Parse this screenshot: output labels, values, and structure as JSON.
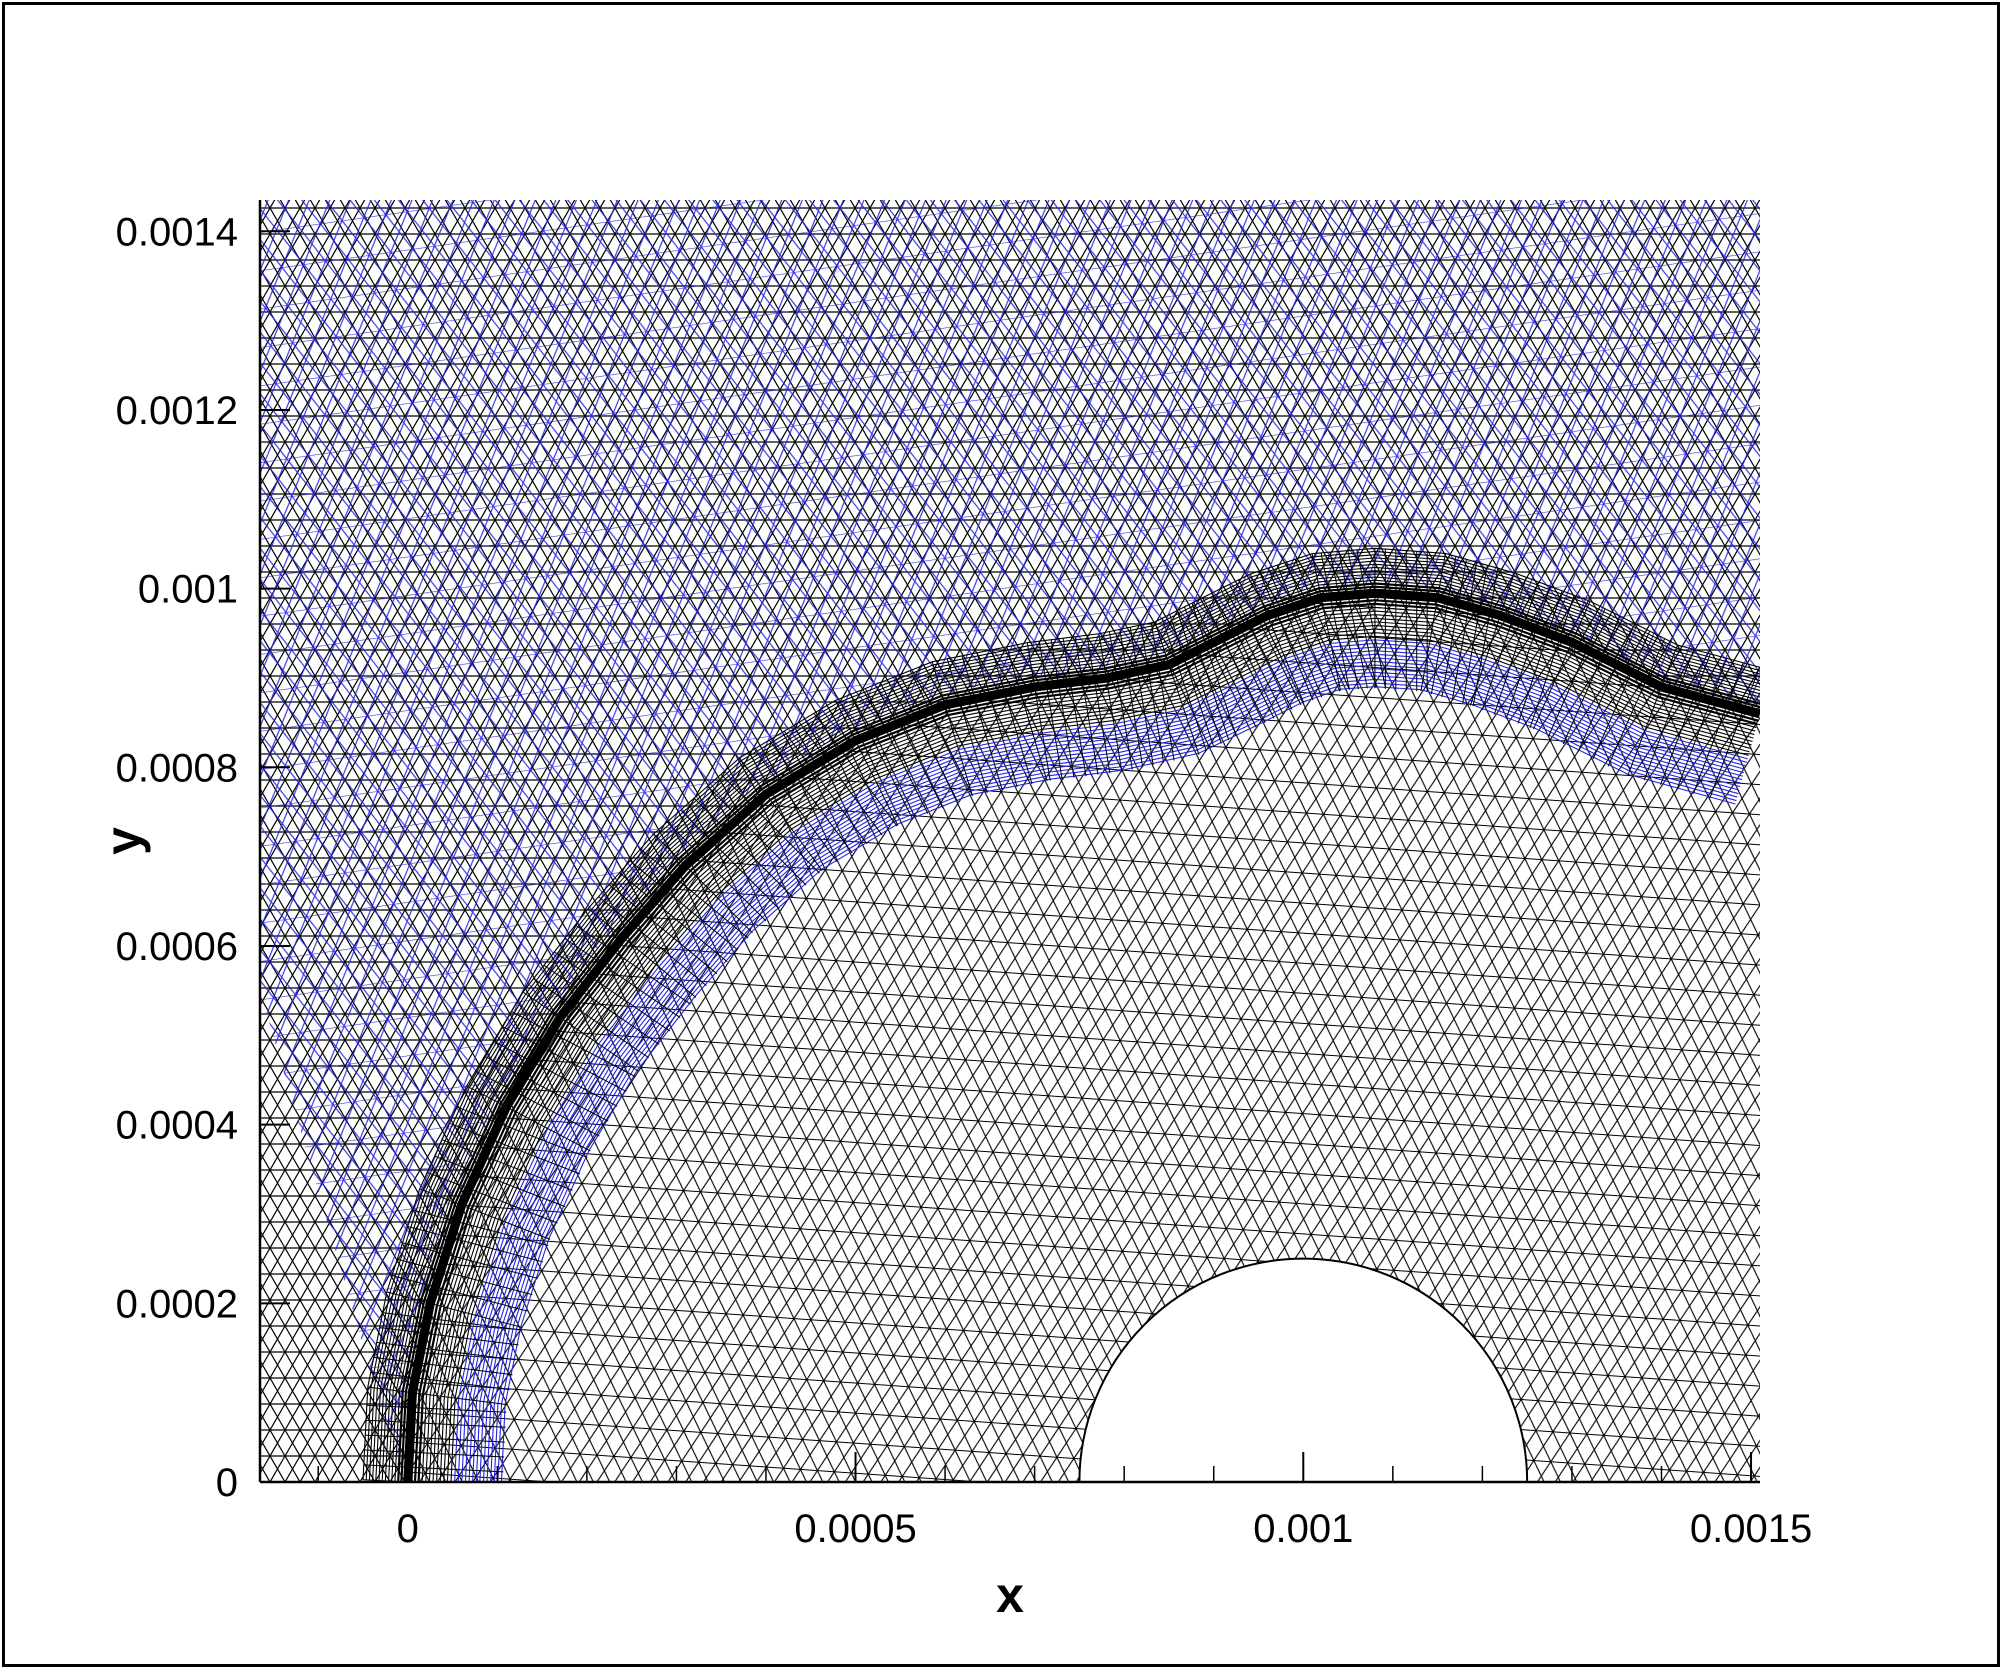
{
  "plot": {
    "xlabel": "x",
    "ylabel": "y",
    "xlim": [
      -0.000165,
      0.00151
    ],
    "ylim": [
      0,
      0.001435
    ],
    "x_tick_labels": [
      "0",
      "0.0005",
      "0.001",
      "0.0015"
    ],
    "x_tick_values": [
      0,
      0.0005,
      0.001,
      0.0015
    ],
    "y_tick_labels": [
      "0",
      "0.0002",
      "0.0004",
      "0.0006",
      "0.0008",
      "0.001",
      "0.0012",
      "0.0014"
    ],
    "y_tick_values": [
      0,
      0.0002,
      0.0004,
      0.0006,
      0.0008,
      0.001,
      0.0012,
      0.0014
    ]
  },
  "mesh": {
    "line_color": "#000000",
    "outer_overlay_color": "#2323e6",
    "interface_curve": [
      [
        0,
        0
      ],
      [
        5e-06,
        0.0001
      ],
      [
        2.5e-05,
        0.0002
      ],
      [
        6e-05,
        0.00031
      ],
      [
        0.00011,
        0.00042
      ],
      [
        0.00017,
        0.00052
      ],
      [
        0.00024,
        0.00061
      ],
      [
        0.00031,
        0.00069
      ],
      [
        0.0004,
        0.00077
      ],
      [
        0.0005,
        0.00083
      ],
      [
        0.0006,
        0.00087
      ],
      [
        0.0007,
        0.00089
      ],
      [
        0.00078,
        0.0009
      ],
      [
        0.00085,
        0.000915
      ],
      [
        0.0009,
        0.00094
      ],
      [
        0.00096,
        0.00097
      ],
      [
        0.00102,
        0.00099
      ],
      [
        0.00108,
        0.000995
      ],
      [
        0.00115,
        0.00099
      ],
      [
        0.00122,
        0.00097
      ],
      [
        0.0013,
        0.00094
      ],
      [
        0.0014,
        0.00089
      ],
      [
        0.00151,
        0.00086
      ]
    ],
    "cylinder": {
      "cx": 0.001,
      "cy": 0,
      "r": 0.00025
    }
  }
}
